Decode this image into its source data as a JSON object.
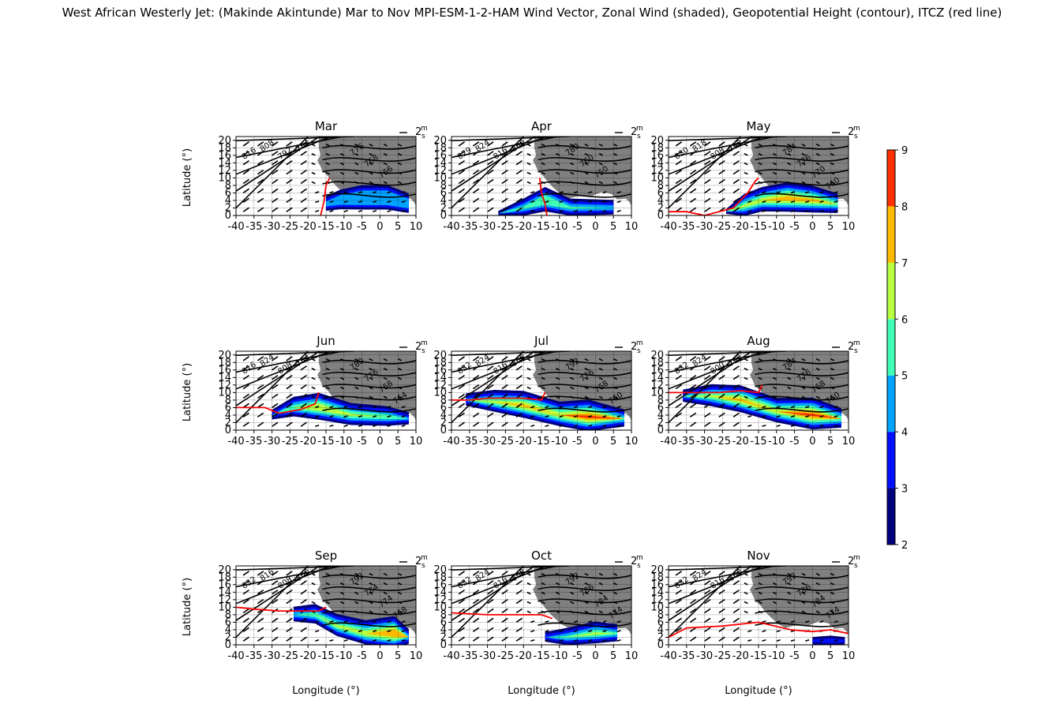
{
  "suptitle": "West African Westerly Jet: (Makinde Akintunde) Mar to Nov MPI-ESM-1-2-HAM Wind Vector, Zonal Wind (shaded), Geopotential Height (contour), ITCZ (red line)",
  "quiver_key_label": "2",
  "quiver_key_unit_num": "m",
  "quiver_key_unit_den": "s",
  "colors": {
    "land": "#808080",
    "itcz": "#ff0000",
    "contour": "#000000",
    "colormap": [
      "#00007f",
      "#0010ff",
      "#00a4ff",
      "#40ffb7",
      "#b7ff40",
      "#ffb900",
      "#ff3000"
    ]
  },
  "chart_data": {
    "type": "heatmap",
    "layout": "3x3 map panels",
    "xlabel": "Longitude (°)",
    "ylabel": "Latitude (°)",
    "x_ticks": [
      -40,
      -35,
      -30,
      -25,
      -20,
      -15,
      -10,
      -5,
      0,
      5,
      10
    ],
    "y_ticks": [
      0,
      2,
      4,
      6,
      8,
      10,
      12,
      14,
      16,
      18,
      20
    ],
    "xlim": [
      -40,
      10
    ],
    "ylim": [
      0,
      21
    ],
    "colorbar": {
      "levels": [
        2,
        3,
        4,
        5,
        6,
        7,
        8,
        9
      ],
      "unit": "m/s"
    },
    "panels": [
      {
        "month": "Mar",
        "jet_max_level": 4,
        "contour_labels": [
          "816",
          "808",
          "792",
          "784",
          "776",
          "768",
          "766"
        ],
        "itcz": [
          [
            -16.5,
            0
          ],
          [
            -15.5,
            4
          ],
          [
            -15,
            8
          ],
          [
            -14,
            10
          ]
        ],
        "jet": [
          [
            -15,
            3,
            4
          ],
          [
            -11,
            4,
            5
          ],
          [
            -5,
            4.5,
            6
          ],
          [
            2,
            4.5,
            6
          ],
          [
            8,
            3,
            5
          ]
        ]
      },
      {
        "month": "Apr",
        "jet_max_level": 5,
        "contour_labels": [
          "829",
          "824",
          "816",
          "800",
          "780",
          "760",
          "750"
        ],
        "itcz": [
          [
            -13.5,
            0
          ],
          [
            -14,
            3
          ],
          [
            -15,
            6
          ],
          [
            -15.5,
            10
          ]
        ],
        "jet": [
          [
            -27,
            0.5,
            2
          ],
          [
            -20,
            2,
            4.5
          ],
          [
            -14,
            4,
            6
          ],
          [
            -7,
            2,
            4.5
          ],
          [
            5,
            2,
            4
          ]
        ]
      },
      {
        "month": "May",
        "jet_max_level": 7,
        "contour_labels": [
          "830",
          "818",
          "808",
          "792",
          "784",
          "776",
          "770",
          "760"
        ],
        "itcz": [
          [
            -40,
            1
          ],
          [
            -35,
            1
          ],
          [
            -30,
            0
          ],
          [
            -22,
            2
          ],
          [
            -18,
            6
          ],
          [
            -16,
            9
          ],
          [
            -15,
            10
          ]
        ],
        "jet": [
          [
            -24,
            1,
            2
          ],
          [
            -19,
            2.5,
            5.5
          ],
          [
            -14,
            4,
            6
          ],
          [
            -7,
            4.5,
            7
          ],
          [
            0,
            4,
            6.5
          ],
          [
            7,
            3,
            5
          ]
        ]
      },
      {
        "month": "Jun",
        "jet_max_level": 6,
        "contour_labels": [
          "816",
          "824",
          "808",
          "784",
          "780",
          "776",
          "768",
          "764"
        ],
        "itcz": [
          [
            -40,
            6
          ],
          [
            -32,
            6
          ],
          [
            -28,
            4.5
          ],
          [
            -22,
            5.5
          ],
          [
            -18,
            7
          ],
          [
            -17,
            10
          ]
        ],
        "jet": [
          [
            -30,
            4,
            3
          ],
          [
            -24,
            6,
            5
          ],
          [
            -17,
            6,
            6.5
          ],
          [
            -8,
            4,
            5.5
          ],
          [
            2,
            3.5,
            5
          ],
          [
            8,
            3,
            3.5
          ]
        ]
      },
      {
        "month": "Jul",
        "jet_max_level": 8,
        "contour_labels": [
          "832",
          "824",
          "816",
          "808",
          "792",
          "776",
          "768",
          "760"
        ],
        "itcz": [
          [
            -40,
            8
          ],
          [
            -35,
            8
          ],
          [
            -30,
            8.5
          ],
          [
            -20,
            8.5
          ],
          [
            -15,
            8
          ],
          [
            -14,
            10
          ]
        ],
        "jet": [
          [
            -36,
            8,
            3.5
          ],
          [
            -28,
            7.5,
            5.5
          ],
          [
            -20,
            6.5,
            6.5
          ],
          [
            -10,
            4,
            6
          ],
          [
            -2,
            3.5,
            7.5
          ],
          [
            8,
            3,
            4.5
          ]
        ]
      },
      {
        "month": "Aug",
        "jet_max_level": 8,
        "contour_labels": [
          "832",
          "824",
          "800",
          "792",
          "784",
          "776",
          "768",
          "760"
        ],
        "itcz": [
          [
            -40,
            10
          ],
          [
            -32,
            10
          ],
          [
            -26,
            10
          ],
          [
            -20,
            10.5
          ],
          [
            -15,
            10
          ],
          [
            -14,
            12
          ]
        ],
        "jet": [
          [
            -36,
            9,
            3.5
          ],
          [
            -28,
            9,
            5.5
          ],
          [
            -20,
            8,
            6.5
          ],
          [
            -10,
            5,
            6
          ],
          [
            0,
            4,
            7.5
          ],
          [
            8,
            3,
            5
          ]
        ]
      },
      {
        "month": "Sep",
        "jet_max_level": 7,
        "contour_labels": [
          "832",
          "816",
          "808",
          "800",
          "792",
          "784",
          "774",
          "768"
        ],
        "itcz": [
          [
            -40,
            10
          ],
          [
            -35,
            9.5
          ],
          [
            -28,
            9
          ],
          [
            -22,
            9
          ],
          [
            -17,
            9
          ],
          [
            -15,
            10
          ]
        ],
        "jet": [
          [
            -24,
            8,
            4
          ],
          [
            -18,
            8,
            5
          ],
          [
            -12,
            5,
            5.5
          ],
          [
            -4,
            3,
            6
          ],
          [
            4,
            3,
            7.5
          ],
          [
            8,
            2,
            4
          ]
        ]
      },
      {
        "month": "Oct",
        "jet_max_level": 6,
        "contour_labels": [
          "832",
          "824",
          "816",
          "808",
          "792",
          "786",
          "784",
          "774"
        ],
        "itcz": [
          [
            -40,
            8.5
          ],
          [
            -30,
            8
          ],
          [
            -22,
            8
          ],
          [
            -15,
            8
          ],
          [
            -12,
            7
          ]
        ],
        "jet": [
          [
            -14,
            2,
            3
          ],
          [
            -8,
            2,
            4.5
          ],
          [
            0,
            3,
            5.5
          ],
          [
            6,
            3,
            4.5
          ]
        ]
      },
      {
        "month": "Nov",
        "jet_max_level": 3,
        "contour_labels": [
          "832",
          "824",
          "816",
          "800",
          "792",
          "786",
          "784",
          "774"
        ],
        "itcz": [
          [
            -40,
            2
          ],
          [
            -35,
            4.5
          ],
          [
            -25,
            5
          ],
          [
            -15,
            6
          ],
          [
            -6,
            4
          ],
          [
            0,
            3.5
          ],
          [
            5,
            4
          ],
          [
            10,
            3
          ]
        ],
        "jet": [
          [
            0,
            1,
            2.5
          ],
          [
            5,
            1,
            3
          ],
          [
            9,
            1,
            2.5
          ]
        ]
      }
    ]
  }
}
